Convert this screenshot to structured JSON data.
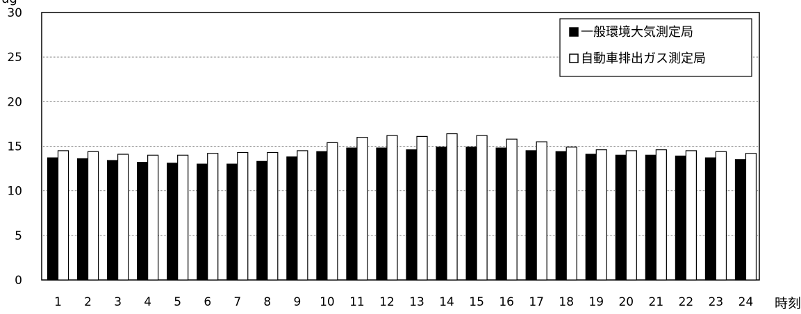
{
  "chart_data": {
    "type": "bar",
    "title": "",
    "ylabel": "",
    "ylabel_top_partial": "ug",
    "xlabel": "時刻",
    "ylim": [
      0,
      30
    ],
    "yticks": [
      0,
      5,
      10,
      15,
      20,
      25,
      30
    ],
    "grid": true,
    "legend_position": "top-right",
    "categories": [
      "1",
      "2",
      "3",
      "4",
      "5",
      "6",
      "7",
      "8",
      "9",
      "10",
      "11",
      "12",
      "13",
      "14",
      "15",
      "16",
      "17",
      "18",
      "19",
      "20",
      "21",
      "22",
      "23",
      "24"
    ],
    "series": [
      {
        "name": "一般環境大気測定局",
        "marker": "■",
        "color": "#000000",
        "values": [
          13.7,
          13.6,
          13.4,
          13.2,
          13.1,
          13.0,
          13.0,
          13.3,
          13.8,
          14.4,
          14.8,
          14.8,
          14.6,
          14.9,
          14.9,
          14.8,
          14.5,
          14.4,
          14.1,
          14.0,
          14.0,
          13.9,
          13.7,
          13.5
        ]
      },
      {
        "name": "自動車排出ガス測定局",
        "marker": "□",
        "color": "#ffffff",
        "values": [
          14.5,
          14.4,
          14.1,
          14.0,
          14.0,
          14.2,
          14.3,
          14.3,
          14.5,
          15.4,
          16.0,
          16.2,
          16.1,
          16.4,
          16.2,
          15.8,
          15.5,
          14.9,
          14.6,
          14.5,
          14.6,
          14.5,
          14.4,
          14.2
        ]
      }
    ]
  }
}
